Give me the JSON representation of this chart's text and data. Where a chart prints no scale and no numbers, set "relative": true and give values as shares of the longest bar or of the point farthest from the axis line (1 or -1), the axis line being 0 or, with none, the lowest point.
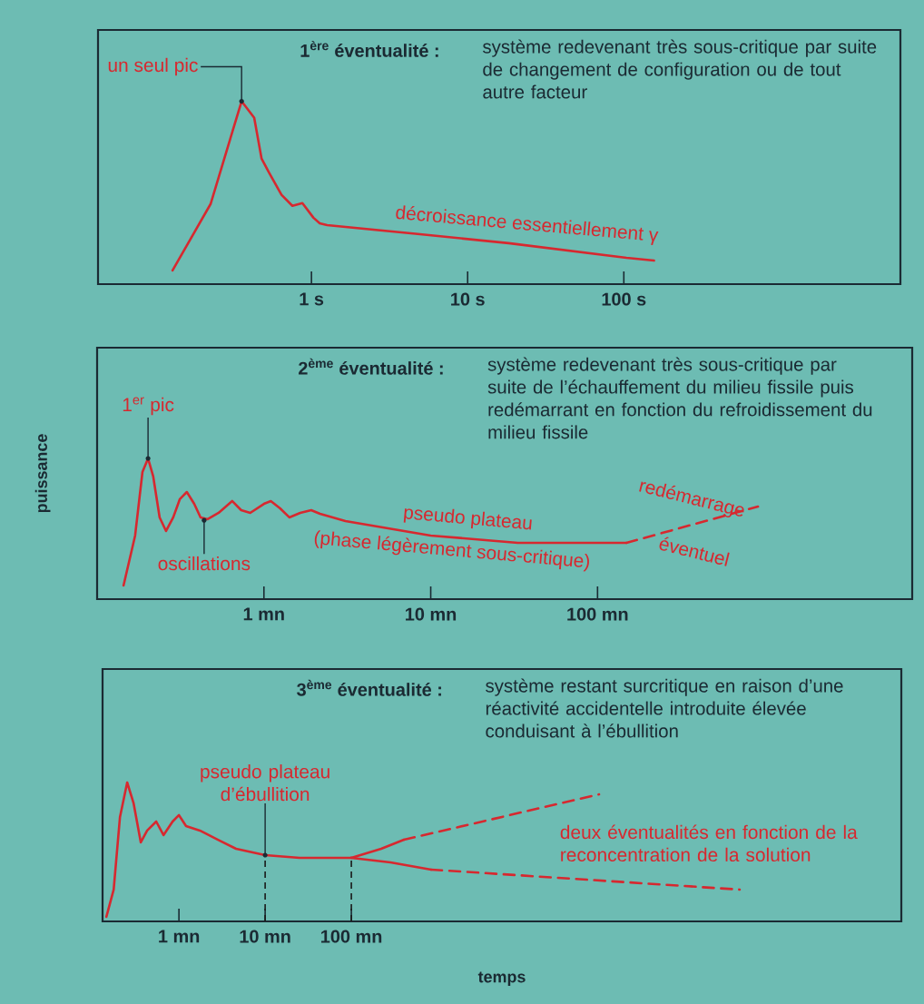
{
  "chart_data": [
    {
      "type": "line",
      "title": "1$^{ère}$ éventualité :",
      "subtitle": "système redevenant très sous-critique par suite de changement de configuration ou de tout autre facteur",
      "relative": true,
      "log": "x",
      "tick_labels": "x",
      "xlim": [
        0.043,
        5900
      ],
      "xticks": [
        {
          "value": 1,
          "label": "1 s"
        },
        {
          "value": 10,
          "label": "10 s"
        },
        {
          "value": 100,
          "label": "100 s"
        }
      ],
      "series": [
        {
          "color": "#d7282f",
          "x": [
            0.129,
            0.226,
            0.357,
            0.43,
            0.479,
            0.533,
            0.643,
            0.755,
            0.875,
            1.03,
            1.13,
            1.26,
            4.79,
            18.3,
            104,
            156
          ],
          "values": [
            0.075,
            0.438,
            1,
            0.91,
            0.687,
            0.612,
            0.488,
            0.428,
            0.443,
            0.363,
            0.333,
            0.323,
            0.274,
            0.224,
            0.144,
            0.129
          ]
        }
      ],
      "annotations": [
        {
          "text": "un seul pic",
          "x": 0.357,
          "y": 1
        },
        {
          "text": "décroissance essentiellement γ",
          "x": 23.9,
          "y": 0.214
        }
      ]
    },
    {
      "type": "line",
      "title": "2$^{ème}$ éventualité :",
      "subtitle": "système redevenant très sous-critique par suite de l’échauffement du milieu fissile puis redémarrant en fonction du refroidissement du milieu fissile",
      "ylabel": "puissance",
      "relative": true,
      "log": "x",
      "tick_labels": "x",
      "xlim": [
        0.1,
        7700
      ],
      "xticks": [
        {
          "value": 1,
          "label": "1 mn"
        },
        {
          "value": 10,
          "label": "10 mn"
        },
        {
          "value": 100,
          "label": "100 mn"
        }
      ],
      "series": [
        {
          "color": "#d7282f",
          "line_style": "solid",
          "x": [
            0.144,
            0.169,
            0.187,
            0.202,
            0.217,
            0.237,
            0.259,
            0.286,
            0.313,
            0.345,
            0.382,
            0.417,
            0.46,
            0.535,
            0.645,
            0.731,
            0.828,
            1,
            1.1,
            1.25,
            1.42,
            1.65,
            1.92,
            2.17,
            3.08,
            10,
            33.3,
            149
          ],
          "values": [
            0.097,
            0.452,
            0.903,
            1,
            0.871,
            0.581,
            0.484,
            0.581,
            0.71,
            0.761,
            0.677,
            0.581,
            0.568,
            0.613,
            0.697,
            0.632,
            0.613,
            0.677,
            0.697,
            0.645,
            0.581,
            0.613,
            0.632,
            0.606,
            0.555,
            0.452,
            0.4,
            0.4
          ]
        },
        {
          "color": "#d7282f",
          "line_style": "dashed",
          "x": [
            149,
            916
          ],
          "values": [
            0.4,
            0.658
          ]
        }
      ],
      "annotations": [
        {
          "text": "1$^{er}$ pic",
          "x": 0.202,
          "y": 1
        },
        {
          "text": "oscillations",
          "x": 0.438,
          "y": 0.56
        },
        {
          "text": "pseudo plateau",
          "x": 16.7,
          "y": 0.439
        },
        {
          "text": "(phase légèrement sous-critique)",
          "x": 13.4,
          "y": 0.44
        },
        {
          "text": "redémarrage",
          "x": 406,
          "y": 0.542
        },
        {
          "text": "éventuel",
          "x": 380,
          "y": 0.535
        }
      ]
    },
    {
      "type": "line",
      "title": "3$^{ème}$ éventualité :",
      "subtitle": "système restant surcritique en raison d’une réactivité accidentelle introduite élevée conduisant à l’ébullition",
      "xlabel": "temps",
      "relative": true,
      "log": "x",
      "tick_labels": "x",
      "xlim": [
        0.13,
        240000000
      ],
      "xticks": [
        {
          "value": 1,
          "label": "1 mn"
        },
        {
          "value": 10,
          "label": "10 mn"
        },
        {
          "value": 100,
          "label": "100 mn"
        }
      ],
      "series": [
        {
          "color": "#d7282f",
          "line_style": "solid",
          "x": [
            0.144,
            0.175,
            0.207,
            0.251,
            0.298,
            0.361,
            0.428,
            0.545,
            0.662,
            0.844,
            1,
            1.21,
            1.75,
            2.84,
            4.6,
            10,
            25.1,
            100
          ],
          "values": [
            0.033,
            0.229,
            0.752,
            1,
            0.85,
            0.569,
            0.654,
            0.719,
            0.621,
            0.719,
            0.765,
            0.686,
            0.654,
            0.588,
            0.523,
            0.477,
            0.458,
            0.458
          ]
        },
        {
          "color": "#d7282f",
          "line_style": "solid",
          "x": [
            100,
            222,
            408
          ],
          "values": [
            0.458,
            0.523,
            0.588
          ]
        },
        {
          "color": "#d7282f",
          "line_style": "dashed",
          "x": [
            408,
            74800
          ],
          "values": [
            0.588,
            0.915
          ]
        },
        {
          "color": "#d7282f",
          "line_style": "solid",
          "x": [
            100,
            284,
            844
          ],
          "values": [
            0.458,
            0.425,
            0.373
          ]
        },
        {
          "color": "#d7282f",
          "line_style": "dashed",
          "x": [
            844,
            3200000
          ],
          "values": [
            0.373,
            0.229
          ]
        }
      ],
      "ref_lines": [
        {
          "axis": "x",
          "value": 10,
          "line_style": "dashed",
          "color": "#1a1a1a"
        },
        {
          "axis": "x",
          "value": 100,
          "line_style": "dashed",
          "color": "#1a1a1a"
        }
      ],
      "annotations": [
        {
          "text": "pseudo plateau d’ébullition",
          "x": 10,
          "y": 0.477
        },
        "deux éventualités en fonction de la reconcentration de la solution"
      ]
    }
  ]
}
